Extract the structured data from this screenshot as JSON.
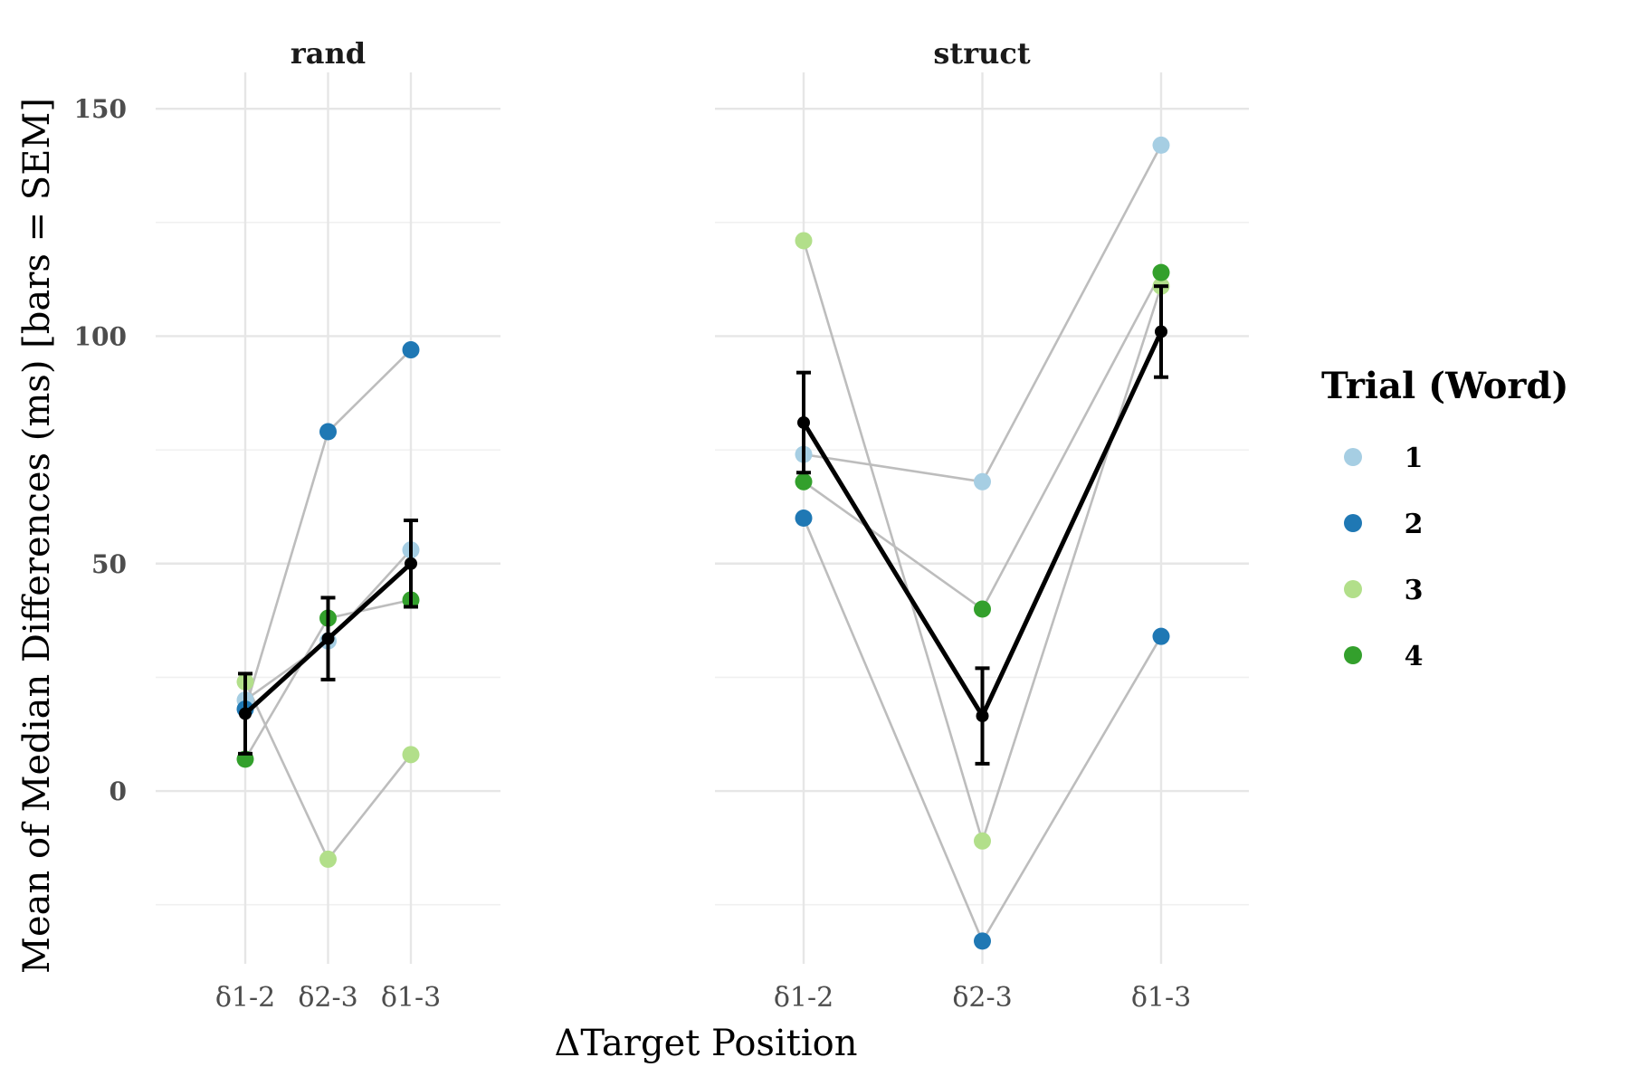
{
  "chart_data": {
    "type": "line",
    "xlabel": "ΔTarget Position",
    "ylabel": "Mean of Median Differences (ms) [bars = SEM]",
    "ylim": [
      -38,
      158
    ],
    "y_ticks": [
      0,
      50,
      100,
      150
    ],
    "categories": [
      "δ1-2",
      "δ2-3",
      "δ1-3"
    ],
    "grid": true,
    "legend": {
      "title": "Trial (Word)",
      "placement": "right",
      "entries": [
        {
          "label": "1",
          "color": "#a6cee3"
        },
        {
          "label": "2",
          "color": "#1f78b4"
        },
        {
          "label": "3",
          "color": "#b2df8a"
        },
        {
          "label": "4",
          "color": "#33a02c"
        }
      ]
    },
    "colors": {
      "series_line": "#bdbdbd",
      "mean_line": "#000000"
    },
    "panels": [
      {
        "name": "rand",
        "series": [
          {
            "name": "1",
            "values": [
              20,
              33,
              53
            ]
          },
          {
            "name": "2",
            "values": [
              18,
              79,
              97
            ]
          },
          {
            "name": "3",
            "values": [
              24,
              -15,
              8
            ]
          },
          {
            "name": "4",
            "values": [
              7,
              38,
              42
            ]
          }
        ],
        "mean": {
          "values": [
            17,
            33.5,
            50
          ],
          "sem": [
            8.8,
            9,
            9.5
          ]
        }
      },
      {
        "name": "struct",
        "series": [
          {
            "name": "1",
            "values": [
              74,
              68,
              142
            ]
          },
          {
            "name": "2",
            "values": [
              60,
              -33,
              34
            ]
          },
          {
            "name": "3",
            "values": [
              121,
              -11,
              111
            ]
          },
          {
            "name": "4",
            "values": [
              68,
              40,
              114
            ]
          }
        ],
        "mean": {
          "values": [
            81,
            16.5,
            101
          ],
          "sem": [
            11,
            10.5,
            10
          ]
        }
      }
    ]
  }
}
